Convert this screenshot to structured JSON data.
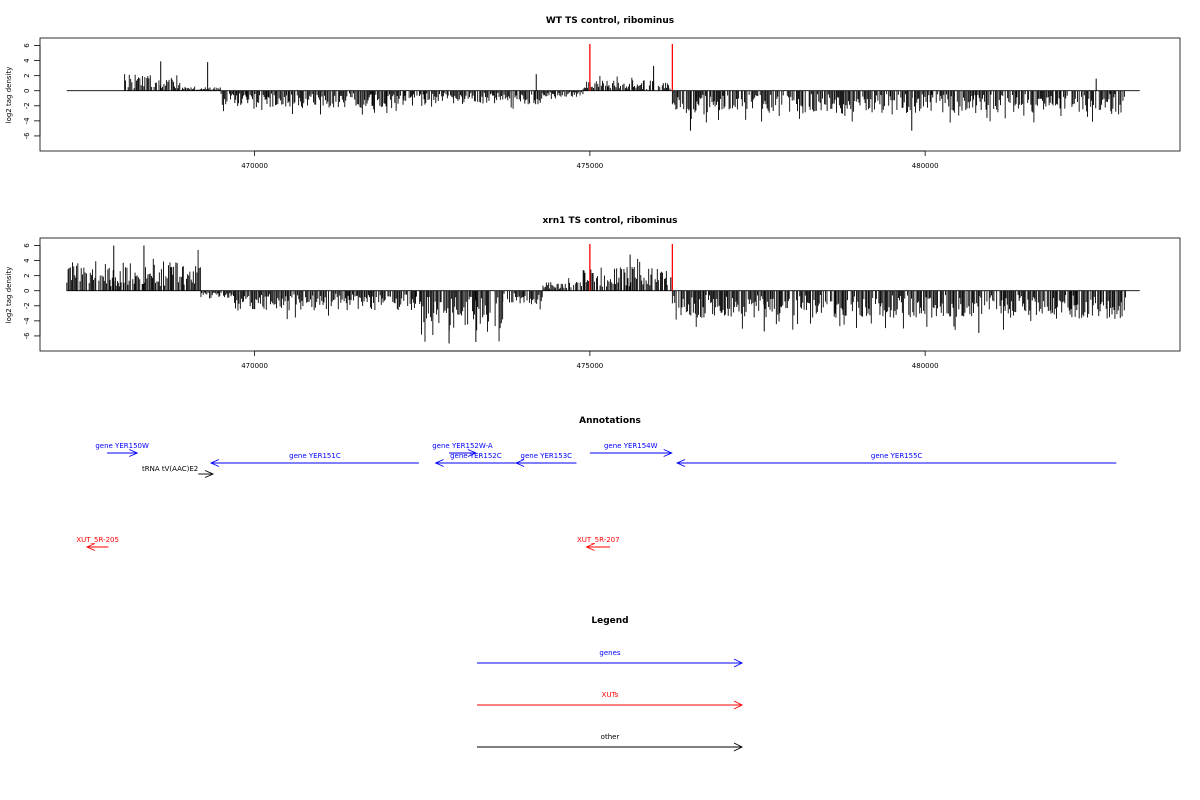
{
  "chart_data": [
    {
      "type": "bar",
      "title": "WT TS control, ribominus",
      "xlabel": "",
      "ylabel": "log2 tag density",
      "xlim": [
        466800,
        483800
      ],
      "ylim": [
        -8,
        7
      ],
      "yticks": [
        -6,
        -4,
        -2,
        0,
        2,
        4,
        6
      ],
      "xticks": [
        470000,
        475000,
        480000
      ],
      "baseline": {
        "from": 467200,
        "to": 483200
      },
      "markers": {
        "color": "#ff0000",
        "x": [
          475000,
          476230
        ],
        "y_top": 6.2
      },
      "segments": [
        {
          "from": 467200,
          "to": 468050,
          "amp": 0,
          "sign": 1
        },
        {
          "from": 468050,
          "to": 468900,
          "amp": 2.2,
          "sign": 1
        },
        {
          "from": 468900,
          "to": 469500,
          "amp": 0.5,
          "sign": 1
        },
        {
          "from": 469500,
          "to": 472800,
          "amp": 2.2,
          "sign": -1
        },
        {
          "from": 472800,
          "to": 474300,
          "amp": 1.8,
          "sign": -1
        },
        {
          "from": 474300,
          "to": 474900,
          "amp": 0.8,
          "sign": -1
        },
        {
          "from": 474900,
          "to": 476230,
          "amp": 1.4,
          "sign": 1
        },
        {
          "from": 476230,
          "to": 478500,
          "amp": 3.0,
          "sign": -1
        },
        {
          "from": 478500,
          "to": 483000,
          "amp": 3.0,
          "sign": -1
        }
      ],
      "peaks": [
        {
          "x": 468600,
          "y": 3.9
        },
        {
          "x": 469300,
          "y": 3.8
        },
        {
          "x": 474200,
          "y": 2.2
        },
        {
          "x": 475950,
          "y": 3.3
        },
        {
          "x": 476500,
          "y": -5.3
        },
        {
          "x": 479800,
          "y": -5.3
        },
        {
          "x": 482550,
          "y": 1.6
        }
      ]
    },
    {
      "type": "bar",
      "title": "xrn1 TS control, ribominus",
      "xlabel": "",
      "ylabel": "log2 tag density",
      "xlim": [
        466800,
        483800
      ],
      "ylim": [
        -8,
        7
      ],
      "yticks": [
        -6,
        -4,
        -2,
        0,
        2,
        4,
        6
      ],
      "xticks": [
        470000,
        475000,
        480000
      ],
      "baseline": {
        "from": 467200,
        "to": 483200
      },
      "markers": {
        "color": "#ff0000",
        "x": [
          475000,
          476230
        ],
        "y_top": 6.2
      },
      "segments": [
        {
          "from": 467200,
          "to": 469200,
          "amp": 3.8,
          "sign": 1
        },
        {
          "from": 469200,
          "to": 469700,
          "amp": 1.0,
          "sign": -1
        },
        {
          "from": 469700,
          "to": 472400,
          "amp": 2.6,
          "sign": -1
        },
        {
          "from": 472400,
          "to": 473700,
          "amp": 5.0,
          "sign": -1
        },
        {
          "from": 473700,
          "to": 474300,
          "amp": 1.8,
          "sign": -1
        },
        {
          "from": 474300,
          "to": 474900,
          "amp": 1.2,
          "sign": 1
        },
        {
          "from": 474900,
          "to": 476230,
          "amp": 3.2,
          "sign": 1
        },
        {
          "from": 476230,
          "to": 483000,
          "amp": 3.6,
          "sign": -1
        }
      ],
      "peaks": [
        {
          "x": 467900,
          "y": 6.0
        },
        {
          "x": 468350,
          "y": 6.0
        },
        {
          "x": 472900,
          "y": -7.0
        },
        {
          "x": 473300,
          "y": -6.8
        },
        {
          "x": 475600,
          "y": 4.8
        },
        {
          "x": 477600,
          "y": -5.4
        },
        {
          "x": 480800,
          "y": -5.6
        }
      ]
    }
  ],
  "annotations": {
    "title": "Annotations",
    "features": [
      {
        "label": "gene YER150W",
        "color": "#0000ff",
        "x1": 467800,
        "x2": 468250,
        "dir": "right",
        "row": 0
      },
      {
        "label": "tRNA tV(AAC)E2",
        "color": "#000000",
        "x1": 469160,
        "x2": 469380,
        "dir": "right",
        "row": 2
      },
      {
        "label": "gene YER151C",
        "color": "#0000ff",
        "x1": 469350,
        "x2": 472450,
        "dir": "left",
        "row": 1
      },
      {
        "label": "gene YER152W-A",
        "color": "#0000ff",
        "x1": 472900,
        "x2": 473300,
        "dir": "right",
        "row": 0
      },
      {
        "label": "gene YER152C",
        "color": "#0000ff",
        "x1": 472700,
        "x2": 473900,
        "dir": "left",
        "row": 1
      },
      {
        "label": "gene YER153C",
        "color": "#0000ff",
        "x1": 473900,
        "x2": 474800,
        "dir": "left",
        "row": 1
      },
      {
        "label": "gene YER154W",
        "color": "#0000ff",
        "x1": 475000,
        "x2": 476220,
        "dir": "right",
        "row": 0
      },
      {
        "label": "gene YER155C",
        "color": "#0000ff",
        "x1": 476300,
        "x2": 482850,
        "dir": "left",
        "row": 1
      },
      {
        "label": "XUT_5R-205",
        "color": "#ff0000",
        "x1": 467500,
        "x2": 467820,
        "dir": "left",
        "row": 3
      },
      {
        "label": "XUT_5R-207",
        "color": "#ff0000",
        "x1": 474950,
        "x2": 475300,
        "dir": "left",
        "row": 3
      }
    ]
  },
  "legend": {
    "title": "Legend",
    "items": [
      {
        "label": "genes",
        "color": "#0000ff"
      },
      {
        "label": "XUTs",
        "color": "#ff0000"
      },
      {
        "label": "other",
        "color": "#000000"
      }
    ]
  }
}
